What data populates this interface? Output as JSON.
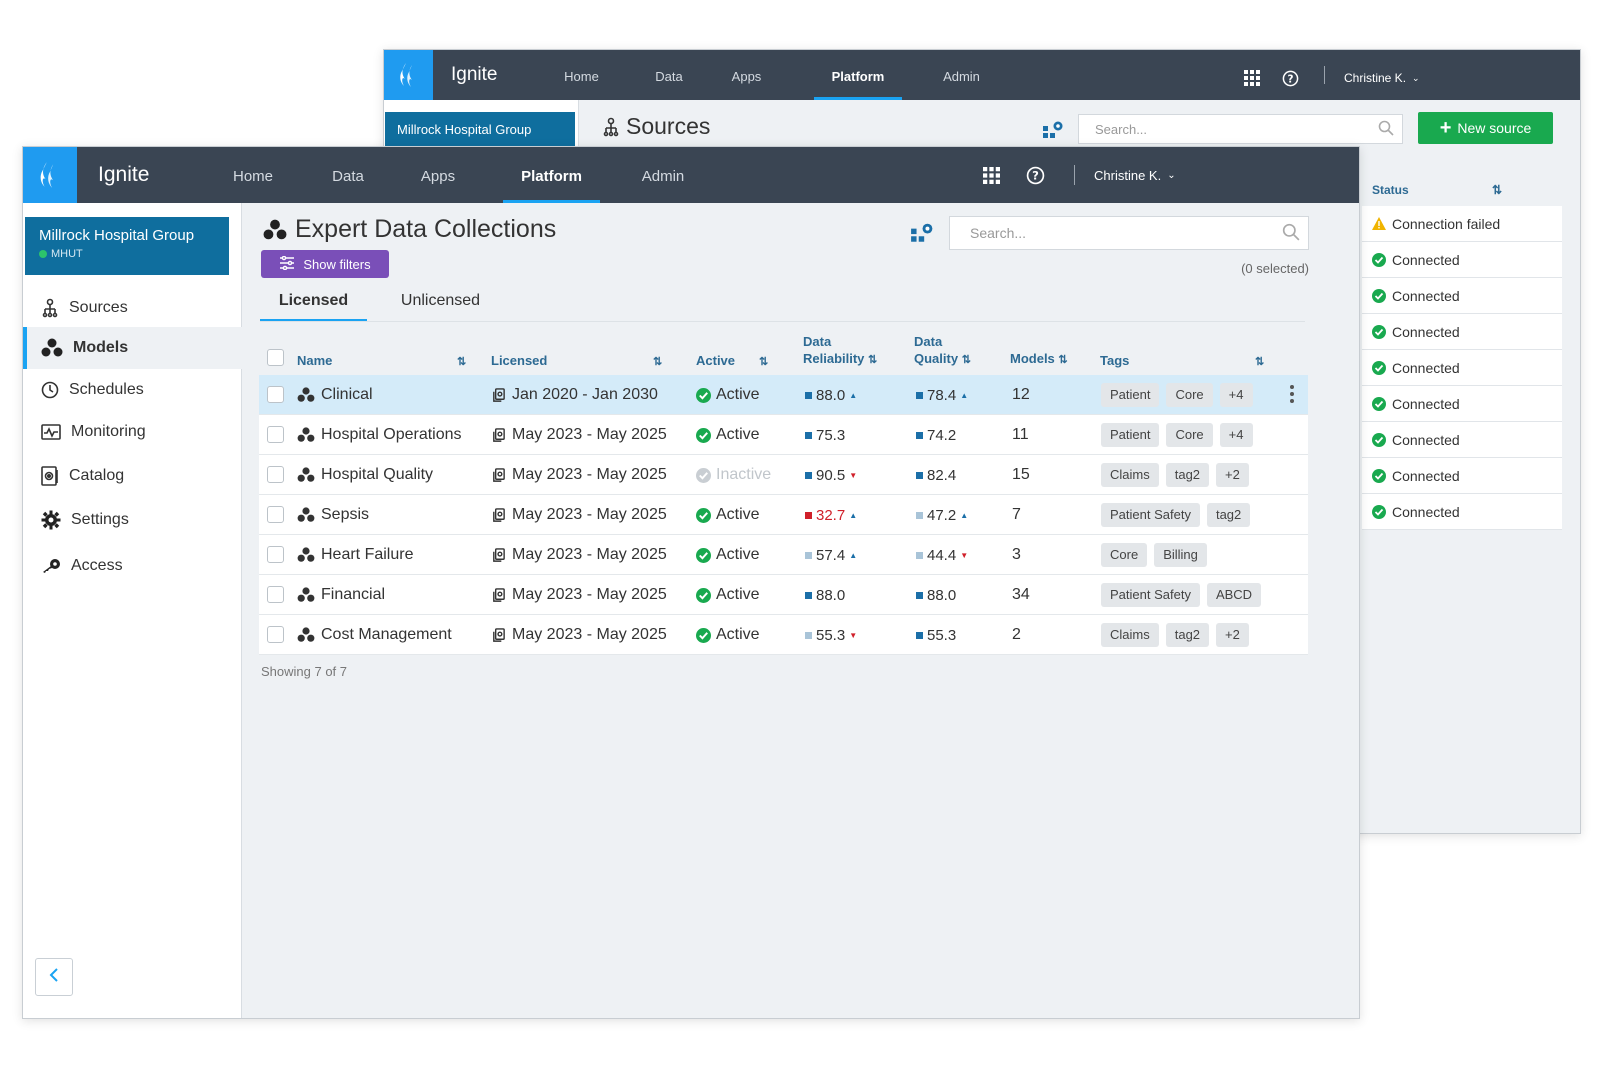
{
  "back": {
    "brand": "Ignite",
    "nav": [
      "Home",
      "Data",
      "Apps",
      "Platform",
      "Admin"
    ],
    "user": "Christine K.",
    "org": "Millrock Hospital Group",
    "title": "Sources",
    "search_placeholder": "Search...",
    "new_button": "New source",
    "status_header": "Status",
    "statuses": [
      "Connection failed",
      "Connected",
      "Connected",
      "Connected",
      "Connected",
      "Connected",
      "Connected",
      "Connected",
      "Connected"
    ]
  },
  "front": {
    "brand": "Ignite",
    "nav": [
      "Home",
      "Data",
      "Apps",
      "Platform",
      "Admin"
    ],
    "active_nav": "Platform",
    "user": "Christine K.",
    "org": {
      "name": "Millrock Hospital Group",
      "code": "MHUT"
    },
    "sidebar": [
      "Sources",
      "Models",
      "Schedules",
      "Monitoring",
      "Catalog",
      "Settings",
      "Access"
    ],
    "active_side": "Models",
    "title": "Expert Data Collections",
    "filters_label": "Show filters",
    "search_placeholder": "Search...",
    "selected_text": "(0 selected)",
    "tabs": [
      "Licensed",
      "Unlicensed"
    ],
    "columns": {
      "name": "Name",
      "licensed": "Licensed",
      "active": "Active",
      "reliability_1": "Data",
      "reliability_2": "Reliability",
      "quality_1": "Data",
      "quality_2": "Quality",
      "models": "Models",
      "tags": "Tags"
    },
    "rows": [
      {
        "name": "Clinical",
        "licensed": "Jan 2020 - Jan 2030",
        "active": "Active",
        "reliability": "88.0",
        "rel_color": "#1b6fa8",
        "rel_trend": "up",
        "quality": "78.4",
        "qual_color": "#1b6fa8",
        "qual_trend": "up",
        "models": "12",
        "tags": [
          "Patient",
          "Core",
          "+4"
        ]
      },
      {
        "name": "Hospital Operations",
        "licensed": "May 2023 - May 2025",
        "active": "Active",
        "reliability": "75.3",
        "rel_color": "#1b6fa8",
        "rel_trend": "",
        "quality": "74.2",
        "qual_color": "#1b6fa8",
        "qual_trend": "",
        "models": "11",
        "tags": [
          "Patient",
          "Core",
          "+4"
        ]
      },
      {
        "name": "Hospital Quality",
        "licensed": "May 2023 - May 2025",
        "active": "Inactive",
        "reliability": "90.5",
        "rel_color": "#1b6fa8",
        "rel_trend": "down",
        "quality": "82.4",
        "qual_color": "#1b6fa8",
        "qual_trend": "",
        "models": "15",
        "tags": [
          "Claims",
          "tag2",
          "+2"
        ]
      },
      {
        "name": "Sepsis",
        "licensed": "May 2023 - May 2025",
        "active": "Active",
        "reliability": "32.7",
        "rel_color": "#d0202a",
        "rel_trend": "up",
        "quality": "47.2",
        "qual_color": "#a9c4d8",
        "qual_trend": "up",
        "models": "7",
        "tags": [
          "Patient Safety",
          "tag2"
        ]
      },
      {
        "name": "Heart Failure",
        "licensed": "May 2023 - May 2025",
        "active": "Active",
        "reliability": "57.4",
        "rel_color": "#a9c4d8",
        "rel_trend": "up",
        "quality": "44.4",
        "qual_color": "#a9c4d8",
        "qual_trend": "down",
        "models": "3",
        "tags": [
          "Core",
          "Billing"
        ]
      },
      {
        "name": "Financial",
        "licensed": "May 2023 - May 2025",
        "active": "Active",
        "reliability": "88.0",
        "rel_color": "#1b6fa8",
        "rel_trend": "",
        "quality": "88.0",
        "qual_color": "#1b6fa8",
        "qual_trend": "",
        "models": "34",
        "tags": [
          "Patient Safety",
          "ABCD"
        ]
      },
      {
        "name": "Cost Management",
        "licensed": "May 2023 - May 2025",
        "active": "Active",
        "reliability": "55.3",
        "rel_color": "#a9c4d8",
        "rel_trend": "down",
        "quality": "55.3",
        "qual_color": "#1b6fa8",
        "qual_trend": "",
        "models": "2",
        "tags": [
          "Claims",
          "tag2",
          "+2"
        ]
      }
    ],
    "showing": "Showing 7 of 7"
  },
  "colors": {
    "nav_bg": "#3a4553",
    "accent": "#1aa3f2",
    "org_bg": "#0f6e9e",
    "green": "#19a94f",
    "purple": "#7a4fb8",
    "warning": "#f0b400"
  }
}
